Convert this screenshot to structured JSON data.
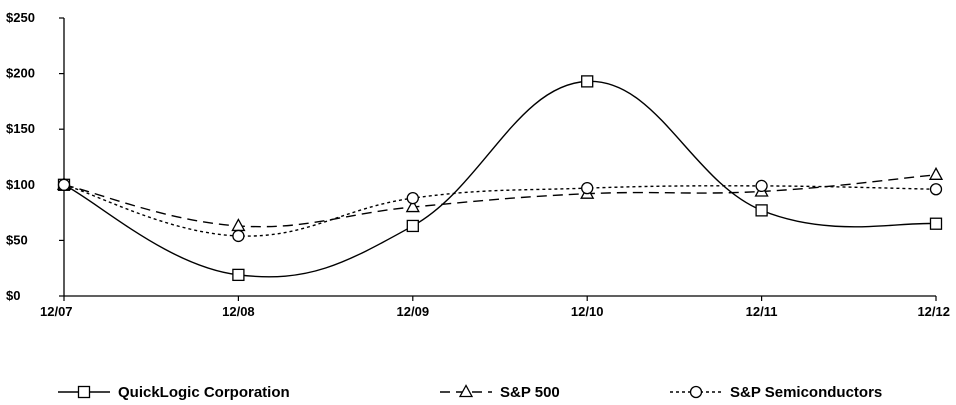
{
  "chart_data": {
    "type": "line",
    "title": "",
    "xlabel": "",
    "ylabel": "",
    "categories": [
      "12/07",
      "12/08",
      "12/09",
      "12/10",
      "12/11",
      "12/12"
    ],
    "ylim": [
      0,
      250
    ],
    "y_ticks": [
      0,
      50,
      100,
      150,
      200,
      250
    ],
    "y_tick_labels": [
      "$0",
      "$50",
      "$100",
      "$150",
      "$200",
      "$250"
    ],
    "grid": false,
    "legend_position": "bottom",
    "series": [
      {
        "name": "QuickLogic Corporation",
        "values": [
          100,
          19,
          63,
          193,
          77,
          65
        ],
        "line_style": "solid",
        "marker": "square",
        "color": "#000000"
      },
      {
        "name": "S&P 500",
        "values": [
          100,
          63,
          80,
          92,
          94,
          109
        ],
        "line_style": "dashed",
        "marker": "triangle",
        "color": "#000000"
      },
      {
        "name": "S&P Semiconductors",
        "values": [
          100,
          54,
          88,
          97,
          99,
          96
        ],
        "line_style": "dotted",
        "marker": "circle",
        "color": "#000000"
      }
    ]
  }
}
